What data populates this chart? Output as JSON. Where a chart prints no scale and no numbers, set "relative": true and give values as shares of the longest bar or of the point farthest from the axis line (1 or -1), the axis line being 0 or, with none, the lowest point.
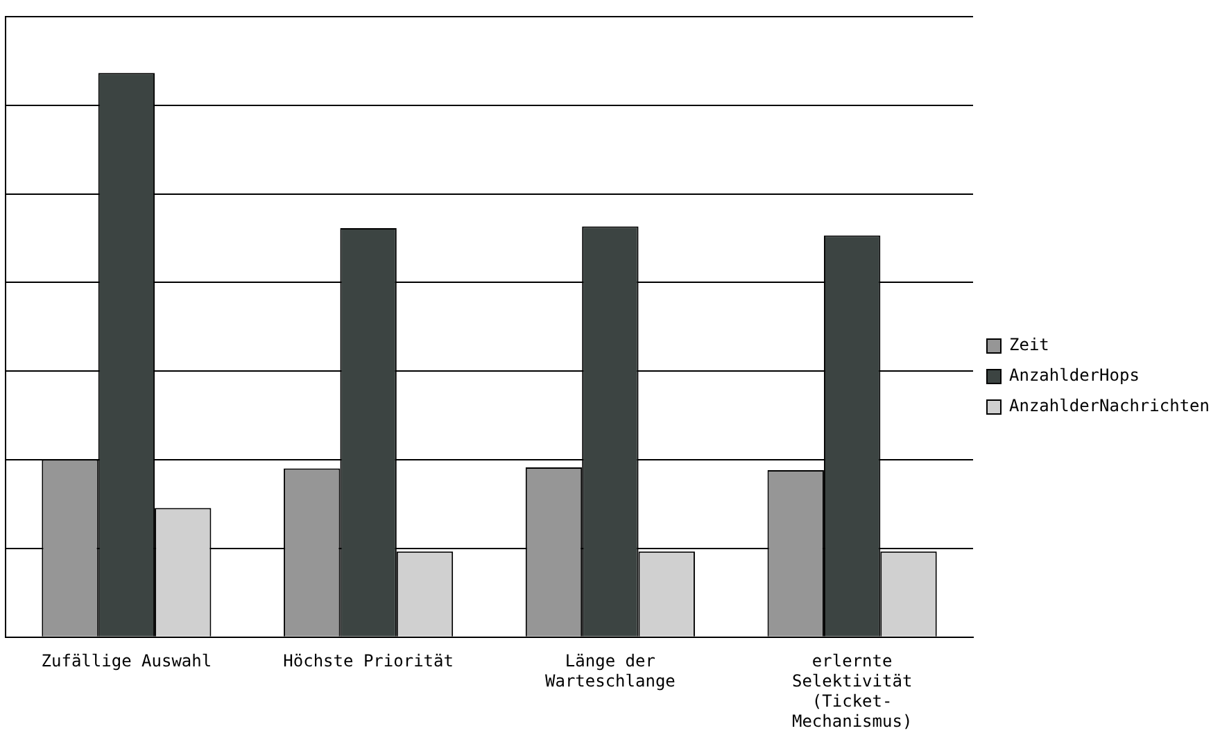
{
  "chart_data": {
    "type": "bar",
    "relative": true,
    "grid": "y",
    "legend": "right",
    "categories": [
      "Zufällige Auswahl",
      "Höchste Priorität",
      "Länge der Warteschlange",
      "erlernte Selektivität (Ticket-Mechanismus)"
    ],
    "series": [
      {
        "name": "Zeit",
        "color": "#969696",
        "values": [
          0.315,
          0.299,
          0.301,
          0.296
        ]
      },
      {
        "name": "AnzahlderHops",
        "color": "#3c4442",
        "values": [
          1,
          0.725,
          0.728,
          0.712
        ]
      },
      {
        "name": "AnzahlderNachrichten",
        "color": "#d0d0d0",
        "values": [
          0.229,
          0.152,
          0.152,
          0.152
        ]
      }
    ]
  }
}
